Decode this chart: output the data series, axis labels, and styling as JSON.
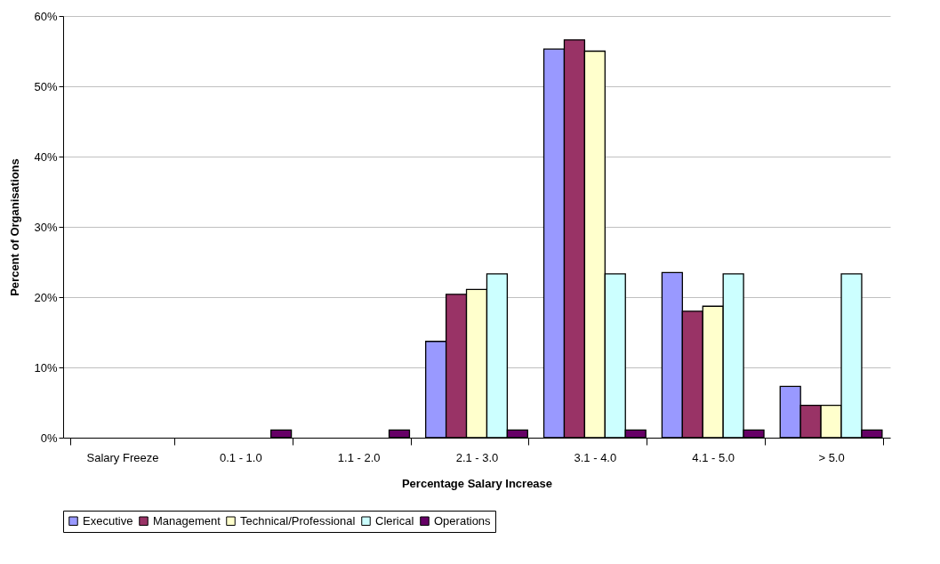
{
  "chart_data": {
    "type": "bar",
    "xlabel": "Percentage Salary Increase",
    "ylabel": "Percent of Organisations",
    "categories": [
      "Salary Freeze",
      "0.1 - 1.0",
      "1.1 - 2.0",
      "2.1 - 3.0",
      "3.1 - 4.0",
      "4.1 - 5.0",
      "> 5.0"
    ],
    "series": [
      {
        "name": "Executive",
        "color": "#9999ff",
        "values": [
          0,
          0,
          0,
          13.7,
          55.3,
          23.5,
          7.3
        ]
      },
      {
        "name": "Management",
        "color": "#993366",
        "values": [
          0,
          0,
          0,
          20.4,
          56.6,
          18.0,
          4.6
        ]
      },
      {
        "name": "Technical/Professional",
        "color": "#ffffcc",
        "values": [
          0,
          0,
          0,
          21.1,
          55.0,
          18.7,
          4.6
        ]
      },
      {
        "name": "Clerical",
        "color": "#ccffff",
        "values": [
          0,
          0,
          0,
          23.3,
          23.3,
          23.3,
          23.3
        ]
      },
      {
        "name": "Operations",
        "color": "#660066",
        "values": [
          0,
          1.1,
          1.1,
          1.1,
          1.1,
          1.1,
          1.1
        ]
      }
    ],
    "ylim": [
      0,
      60
    ],
    "yticks": [
      {
        "value": 0,
        "label": "0%"
      },
      {
        "value": 10,
        "label": "10%"
      },
      {
        "value": 20,
        "label": "20%"
      },
      {
        "value": 30,
        "label": "30%"
      },
      {
        "value": 40,
        "label": "40%"
      },
      {
        "value": 50,
        "label": "50%"
      },
      {
        "value": 60,
        "label": "60%"
      }
    ],
    "grid": "y",
    "legend": "bottom"
  }
}
